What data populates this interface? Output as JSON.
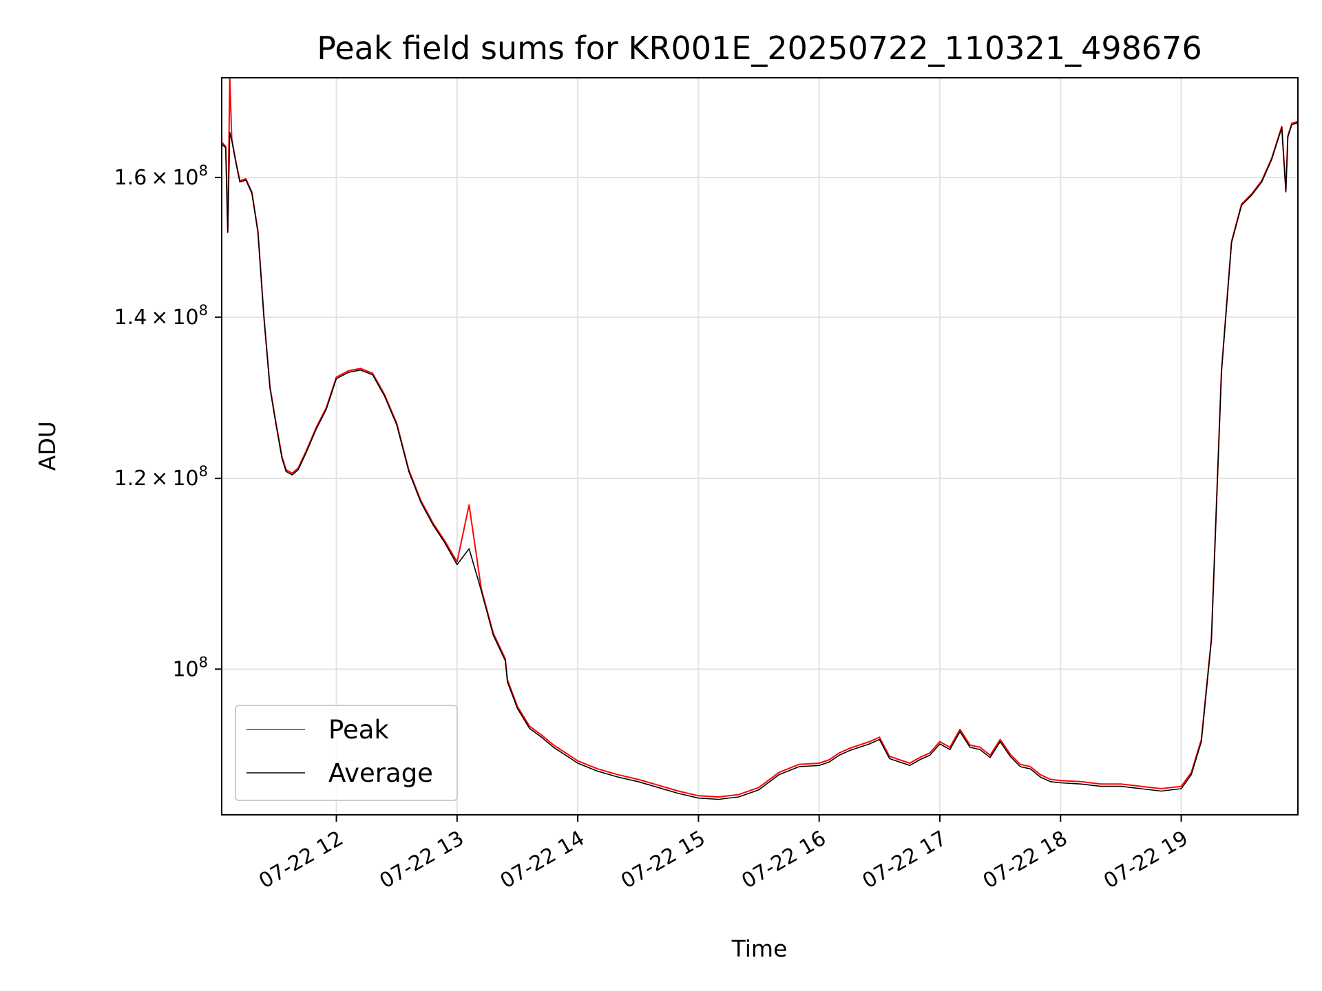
{
  "chart_data": {
    "type": "line",
    "title": "Peak field sums for KR001E_20250722_110321_498676",
    "xlabel": "Time",
    "ylabel": "ADU",
    "yscale": "log",
    "grid": true,
    "legend_position": "lower-left",
    "x_tick_labels": [
      "07-22 12",
      "07-22 13",
      "07-22 14",
      "07-22 15",
      "07-22 16",
      "07-22 17",
      "07-22 18",
      "07-22 19"
    ],
    "y_ticks": [
      {
        "value": 100000000,
        "mantissa": "",
        "exponent": "8"
      },
      {
        "value": 120000000,
        "mantissa": "1.2",
        "exponent": "8"
      },
      {
        "value": 140000000,
        "mantissa": "1.4",
        "exponent": "8"
      },
      {
        "value": 160000000,
        "mantissa": "1.6",
        "exponent": "8"
      }
    ],
    "xlim": [
      "2025-07-22 11:03",
      "2025-07-22 19:58"
    ],
    "ylim": [
      87000000,
      176000000
    ],
    "x": [
      "11:03",
      "11:05",
      "11:06",
      "11:07",
      "11:08",
      "11:10",
      "11:12",
      "11:15",
      "11:18",
      "11:21",
      "11:24",
      "11:27",
      "11:30",
      "11:33",
      "11:35",
      "11:38",
      "11:41",
      "11:45",
      "11:50",
      "11:55",
      "12:00",
      "12:06",
      "12:12",
      "12:18",
      "12:24",
      "12:30",
      "12:36",
      "12:42",
      "12:48",
      "12:54",
      "13:00",
      "13:06",
      "13:12",
      "13:18",
      "13:24",
      "13:25",
      "13:30",
      "13:36",
      "13:42",
      "13:48",
      "13:54",
      "14:00",
      "14:10",
      "14:20",
      "14:30",
      "14:40",
      "14:50",
      "15:00",
      "15:10",
      "15:20",
      "15:30",
      "15:40",
      "15:50",
      "16:00",
      "16:05",
      "16:10",
      "16:15",
      "16:20",
      "16:25",
      "16:30",
      "16:35",
      "16:40",
      "16:45",
      "16:50",
      "16:55",
      "17:00",
      "17:05",
      "17:10",
      "17:15",
      "17:20",
      "17:25",
      "17:30",
      "17:35",
      "17:40",
      "17:45",
      "17:50",
      "17:55",
      "18:00",
      "18:10",
      "18:20",
      "18:30",
      "18:40",
      "18:50",
      "19:00",
      "19:05",
      "19:10",
      "19:15",
      "19:20",
      "19:25",
      "19:30",
      "19:35",
      "19:40",
      "19:45",
      "19:50",
      "19:52",
      "19:53",
      "19:55",
      "19:58"
    ],
    "series": [
      {
        "name": "Peak",
        "color": "#ff0000",
        "values": [
          165500000,
          164800000,
          152000000,
          176000000,
          166000000,
          162500000,
          159500000,
          159800000,
          157800000,
          152000000,
          140000000,
          131000000,
          126500000,
          122500000,
          121000000,
          120600000,
          121200000,
          123200000,
          126000000,
          128400000,
          132200000,
          133000000,
          133300000,
          132700000,
          130000000,
          126500000,
          121000000,
          117500000,
          115000000,
          113000000,
          110800000,
          117000000,
          108000000,
          103500000,
          101000000,
          99000000,
          96500000,
          94700000,
          93900000,
          93000000,
          92300000,
          91600000,
          90900000,
          90400000,
          90000000,
          89500000,
          89000000,
          88600000,
          88500000,
          88700000,
          89300000,
          90600000,
          91300000,
          91400000,
          91700000,
          92300000,
          92700000,
          93000000,
          93300000,
          93700000,
          92000000,
          91700000,
          91400000,
          91900000,
          92300000,
          93300000,
          92800000,
          94400000,
          93000000,
          92800000,
          92100000,
          93500000,
          92200000,
          91300000,
          91100000,
          90400000,
          90000000,
          89900000,
          89800000,
          89600000,
          89600000,
          89400000,
          89200000,
          89400000,
          90600000,
          93500000,
          103000000,
          133000000,
          150500000,
          156000000,
          157500000,
          159500000,
          163000000,
          168000000,
          158000000,
          166500000,
          168500000,
          168800000
        ]
      },
      {
        "name": "Average",
        "color": "#000000",
        "values": [
          165200000,
          164600000,
          151800000,
          167000000,
          165800000,
          162300000,
          159300000,
          159600000,
          157600000,
          151800000,
          139800000,
          130800000,
          126300000,
          122300000,
          120800000,
          120400000,
          121000000,
          123000000,
          125800000,
          128200000,
          132000000,
          132800000,
          133100000,
          132500000,
          129800000,
          126300000,
          120800000,
          117300000,
          114800000,
          112800000,
          110500000,
          112200000,
          107800000,
          103300000,
          100800000,
          98800000,
          96300000,
          94500000,
          93700000,
          92800000,
          92100000,
          91400000,
          90700000,
          90200000,
          89800000,
          89300000,
          88800000,
          88400000,
          88300000,
          88500000,
          89100000,
          90400000,
          91100000,
          91200000,
          91500000,
          92100000,
          92500000,
          92800000,
          93100000,
          93500000,
          91800000,
          91500000,
          91200000,
          91700000,
          92100000,
          93100000,
          92600000,
          94200000,
          92800000,
          92600000,
          91900000,
          93300000,
          92000000,
          91100000,
          90900000,
          90200000,
          89800000,
          89700000,
          89600000,
          89400000,
          89400000,
          89200000,
          89000000,
          89200000,
          90400000,
          93300000,
          102800000,
          132800000,
          150300000,
          155800000,
          157300000,
          159300000,
          162800000,
          167800000,
          157800000,
          166300000,
          168300000,
          168600000
        ]
      }
    ]
  }
}
